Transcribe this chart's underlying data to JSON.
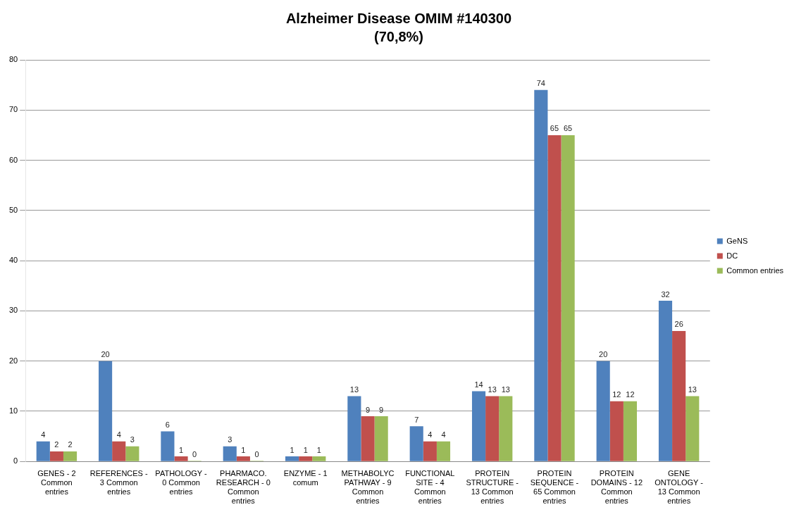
{
  "chart_data": {
    "type": "bar",
    "title": "Alzheimer Disease OMIM #140300",
    "subtitle": "(70,8%)",
    "categories": [
      "GENES - 2 Common entries",
      "REFERENCES  - 3 Common entries",
      "PATHOLOGY - 0 Common entries",
      "PHARMACO. RESEARCH - 0 Common entries",
      "ENZYME - 1 comum",
      "METHABOLYC PATHWAY - 9 Common entries",
      "FUNCTIONAL SITE - 4 Common entries",
      "PROTEIN STRUCTURE - 13 Common entries",
      "PROTEIN SEQUENCE - 65 Common entries",
      "PROTEIN DOMAINS - 12 Common entries",
      "GENE ONTOLOGY - 13 Common entries"
    ],
    "series": [
      {
        "name": "GeNS",
        "color": "#4f81bd",
        "values": [
          4,
          20,
          6,
          3,
          1,
          13,
          7,
          14,
          74,
          20,
          32
        ]
      },
      {
        "name": "DC",
        "color": "#c0504d",
        "values": [
          2,
          4,
          1,
          1,
          1,
          9,
          4,
          13,
          65,
          12,
          26
        ]
      },
      {
        "name": "Common entries",
        "color": "#9bbb59",
        "values": [
          2,
          3,
          0,
          0,
          1,
          9,
          4,
          13,
          65,
          12,
          13
        ]
      }
    ],
    "ylim": [
      0,
      80
    ],
    "yticks": [
      0,
      10,
      20,
      30,
      40,
      50,
      60,
      70,
      80
    ],
    "grid": "y",
    "legend": "right",
    "data_labels": true
  }
}
